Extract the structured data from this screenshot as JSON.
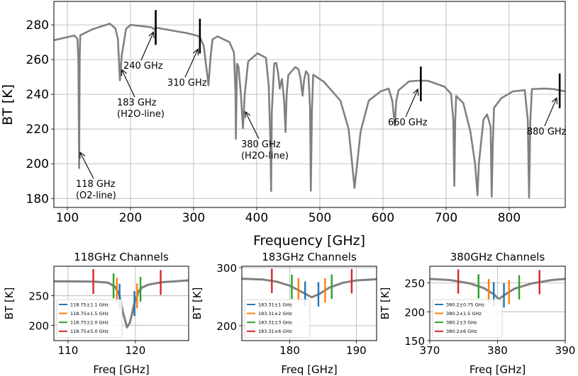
{
  "chart_data": [
    {
      "type": "line",
      "title": "",
      "xlabel": "Frequency [GHz]",
      "ylabel": "BT [K]",
      "xlim": [
        78.7,
        888.8
      ],
      "ylim": [
        174.8,
        293.5
      ],
      "grid": true,
      "xticks": [
        100,
        200,
        300,
        400,
        500,
        600,
        700,
        800
      ],
      "yticks": [
        180,
        200,
        220,
        240,
        260,
        280
      ],
      "line_color": "#808080",
      "series": [
        {
          "name": "BT",
          "x": [
            79.4,
            111,
            116,
            117.5,
            118.75,
            119.6,
            120.5,
            140,
            167.4,
            176,
            180,
            183.3,
            186,
            193,
            200,
            233,
            238,
            240,
            290,
            305,
            309.8,
            316,
            320,
            323.6,
            327,
            330,
            337.9,
            357,
            364,
            366.5,
            367,
            368.7,
            371,
            375,
            378.3,
            381,
            386.5,
            401.5,
            414.6,
            419,
            421.5,
            422.8,
            424,
            427.7,
            431,
            434,
            436.6,
            438,
            440,
            443.5,
            445.7,
            447.5,
            450,
            461,
            466,
            469,
            472.7,
            475,
            478,
            482,
            484.5,
            485.8,
            487.5,
            489.5,
            506.4,
            532.6,
            545.7,
            555,
            564.6,
            577.5,
            596.3,
            609,
            615,
            618.7,
            621,
            624.6,
            641.2,
            654,
            671,
            697.4,
            707.9,
            711.5,
            713.1,
            714.5,
            716,
            727.3,
            738.5,
            746,
            749.8,
            752,
            759.2,
            765,
            770.6,
            772.3,
            774,
            776,
            787.3,
            806,
            824.7,
            829.5,
            831.5,
            833.5,
            836,
            854.8,
            870,
            888.4
          ],
          "y": [
            271.2,
            273.9,
            272,
            260,
            197.5,
            262,
            274,
            277.5,
            280.7,
            278,
            272,
            248,
            262,
            277.6,
            280,
            278.6,
            277.5,
            278.4,
            275.2,
            273.8,
            273,
            268,
            256,
            245.2,
            262,
            271.6,
            273.4,
            270,
            264,
            240,
            214.4,
            257.6,
            256,
            240,
            220.5,
            240,
            259,
            263.6,
            261,
            245,
            215,
            184.3,
            230,
            257.7,
            258,
            252,
            243.3,
            246,
            248.8,
            236,
            218.3,
            240,
            251,
            255.7,
            254.5,
            250,
            239.2,
            248,
            253.3,
            251.3,
            232,
            184.5,
            230,
            251.3,
            247.2,
            236.3,
            220,
            186,
            218.6,
            236.3,
            241.7,
            243.3,
            236,
            222,
            236,
            242.3,
            247.4,
            247.8,
            247.8,
            244.4,
            240.3,
            225,
            187.3,
            225,
            239,
            234.9,
            218.6,
            200,
            181.8,
            200,
            225.4,
            228.4,
            221.3,
            181.1,
            210,
            232.2,
            237.7,
            241.7,
            242.4,
            225,
            180.5,
            225,
            243,
            243.3,
            243,
            241.7
          ]
        }
      ],
      "markers": [
        {
          "freq": 240,
          "bt": 278.5,
          "half_range_K": 10
        },
        {
          "freq": 310,
          "bt": 273.5,
          "half_range_K": 10
        },
        {
          "freq": 660,
          "bt": 246,
          "half_range_K": 10
        },
        {
          "freq": 880,
          "bt": 242,
          "half_range_K": 10
        }
      ],
      "annotations": [
        {
          "lines": [
            "118 GHz",
            "(O2-line)"
          ],
          "xy": [
            120,
            206.6
          ],
          "xytext": [
            113.5,
            186.6
          ]
        },
        {
          "lines": [
            "183 GHz",
            "(H2O-line)"
          ],
          "xy": [
            186.2,
            254.2
          ],
          "xytext": [
            178.7,
            233.5
          ]
        },
        {
          "lines": [
            "240 GHz"
          ],
          "xy": [
            236.7,
            275.9
          ],
          "xytext": [
            188.8,
            254.7
          ]
        },
        {
          "lines": [
            "310 GHz"
          ],
          "xy": [
            307,
            266
          ],
          "xytext": [
            258.4,
            244.9
          ]
        },
        {
          "lines": [
            "380 GHz",
            "(H2O-line)"
          ],
          "xy": [
            382,
            230
          ],
          "xytext": [
            375.3,
            209.5
          ]
        },
        {
          "lines": [
            "660 GHz"
          ],
          "xy": [
            655.4,
            242.9
          ],
          "xytext": [
            607.9,
            222.1
          ]
        },
        {
          "lines": [
            "880 GHz"
          ],
          "xy": [
            875.3,
            237.9
          ],
          "xytext": [
            828,
            216.8
          ]
        }
      ]
    },
    {
      "type": "line",
      "title": "118GHz Channels",
      "xlabel": "Freq [GHz]",
      "ylabel": "BT [K]",
      "xlim": [
        107.9,
        127.9
      ],
      "ylim": [
        174,
        300
      ],
      "xticks": [
        110,
        120
      ],
      "yticks": [
        200,
        250
      ],
      "center": 118.75,
      "bar_half_K": 21,
      "curve": {
        "x": [
          107.9,
          114,
          116,
          117,
          117.6,
          118.2,
          118.75,
          119.2,
          119.8,
          120.5,
          121,
          122,
          124,
          127.9
        ],
        "y": [
          274.5,
          274,
          272,
          265,
          252,
          220,
          196.5,
          205,
          235,
          258,
          264,
          269,
          273,
          276
        ]
      },
      "channels": [
        {
          "label": "118.75±1.1 GHz",
          "offset": 1.1,
          "color": "#1f77b4"
        },
        {
          "label": "118.75±1.5 GHz",
          "offset": 1.5,
          "color": "#ff7f0e"
        },
        {
          "label": "118.75±2.0 GHz",
          "offset": 2.0,
          "color": "#2ca02c"
        },
        {
          "label": "118.75±5.0 GHz",
          "offset": 5.0,
          "color": "#d62728"
        }
      ]
    },
    {
      "type": "line",
      "title": "183GHz Channels",
      "xlabel": "Freq [GHz]",
      "ylabel": "BT [K]",
      "xlim": [
        172.8,
        193.05
      ],
      "ylim": [
        174.4,
        302.4
      ],
      "xticks": [
        180,
        190
      ],
      "yticks": [
        200,
        300
      ],
      "center": 183.31,
      "bar_half_K": 21,
      "curve": {
        "x": [
          172.8,
          176,
          178,
          180,
          182,
          183.31,
          184.5,
          186,
          188,
          190,
          193.05
        ],
        "y": [
          281,
          279.5,
          276,
          269,
          257,
          249,
          255,
          266,
          274,
          278,
          280
        ]
      },
      "channels": [
        {
          "label": "183.31±1 GHz",
          "offset": 1,
          "color": "#1f77b4"
        },
        {
          "label": "183.31±2 GHz",
          "offset": 2,
          "color": "#ff7f0e"
        },
        {
          "label": "183.31±3 GHz",
          "offset": 3,
          "color": "#2ca02c"
        },
        {
          "label": "183.31±6 GHz",
          "offset": 6,
          "color": "#d62728"
        }
      ]
    },
    {
      "type": "line",
      "title": "380GHz Channels",
      "xlabel": "Freq [GHz]",
      "ylabel": "BT [K]",
      "xlim": [
        370,
        390
      ],
      "ylim": [
        150,
        279
      ],
      "xticks": [
        370,
        380,
        390
      ],
      "yticks": [
        150,
        200,
        250
      ],
      "center": 380.2,
      "bar_half_K": 21,
      "curve": {
        "x": [
          370,
          373,
          376,
          378,
          379.5,
          380.2,
          381,
          382.5,
          385,
          388,
          390
        ],
        "y": [
          257,
          255,
          249,
          241,
          230,
          222,
          229,
          240,
          249,
          255,
          257
        ]
      },
      "channels": [
        {
          "label": "380.2±0.75 GHz",
          "offset": 0.75,
          "color": "#1f77b4"
        },
        {
          "label": "380.2±1.5 GHz",
          "offset": 1.5,
          "color": "#ff7f0e"
        },
        {
          "label": "380.2±3 GHz",
          "offset": 3,
          "color": "#2ca02c"
        },
        {
          "label": "380.2±6 GHz",
          "offset": 6,
          "color": "#d62728"
        }
      ]
    }
  ]
}
